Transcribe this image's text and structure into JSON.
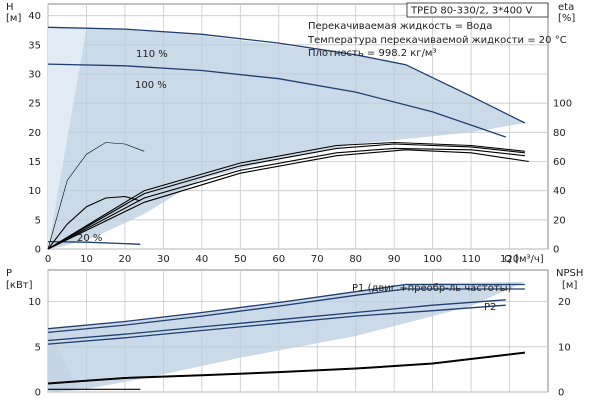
{
  "title": "TPED 80-330/2, 3*400 V",
  "info": [
    "Перекачиваемая жидкость = Вода",
    "Температура перекачиваемой жидкости = 20 °C",
    "Плотность = 998.2 кг/м³"
  ],
  "colors": {
    "band": "#b9cde0",
    "band_light": "#e1ebf5",
    "curve": "#1f3f6e",
    "efficiency": "#000000",
    "grid": "#c8c8c8"
  },
  "chart_data": [
    {
      "type": "line",
      "name": "head",
      "xlabel": "Q [м³/ч]",
      "ylabel": "H",
      "ylabel_unit": "[м]",
      "y2label": "eta",
      "y2label_unit": "[%]",
      "xlim": [
        0,
        130
      ],
      "ylim": [
        0,
        42
      ],
      "y2lim": [
        0,
        168
      ],
      "xticks": [
        0,
        10,
        20,
        30,
        40,
        50,
        60,
        70,
        80,
        90,
        100,
        110,
        120
      ],
      "yticks": [
        0,
        5,
        10,
        15,
        20,
        25,
        30,
        35,
        40
      ],
      "y2ticks": [
        0,
        20,
        40,
        60,
        80,
        100
      ],
      "grid": true,
      "curve_labels": [
        "110 %",
        "100 %",
        "20 %"
      ],
      "series": [
        {
          "name": "110 %",
          "x": [
            0,
            20,
            40,
            60,
            80,
            93,
            110,
            124
          ],
          "y": [
            38,
            37.7,
            36.8,
            35.3,
            33.3,
            31.6,
            26.2,
            21.6
          ]
        },
        {
          "name": "100 %",
          "x": [
            0,
            20,
            40,
            60,
            80,
            100,
            119
          ],
          "y": [
            31.7,
            31.4,
            30.6,
            29.2,
            26.9,
            23.5,
            19.2
          ]
        },
        {
          "name": "20 %",
          "x": [
            0,
            10,
            20,
            24
          ],
          "y": [
            1.27,
            1.17,
            0.93,
            0.8
          ]
        },
        {
          "x": [
            0,
            25,
            50,
            75,
            93,
            110,
            125
          ],
          "y": [
            0,
            32,
            52,
            64,
            68,
            66,
            60
          ],
          "axis": "y2"
        },
        {
          "x": [
            0,
            25,
            50,
            75,
            90,
            110,
            124
          ],
          "y": [
            0,
            35,
            54,
            66,
            69,
            68,
            64
          ],
          "axis": "y2"
        },
        {
          "x": [
            0,
            25,
            50,
            75,
            90,
            110,
            124
          ],
          "y": [
            0,
            38,
            57,
            69,
            72,
            70,
            66
          ],
          "axis": "y2"
        },
        {
          "x": [
            0,
            25,
            50,
            75,
            90,
            110,
            124
          ],
          "y": [
            0,
            40,
            59,
            71,
            73,
            71,
            67
          ],
          "axis": "y2"
        },
        {
          "x": [
            0,
            5,
            10,
            15,
            20,
            24
          ],
          "y": [
            0,
            17,
            29,
            35,
            36,
            33
          ],
          "axis": "y2"
        },
        {
          "x": [
            0,
            5,
            10,
            15,
            20,
            25
          ],
          "y": [
            0,
            47,
            65,
            73,
            72,
            67
          ],
          "axis": "y2",
          "thin": true
        }
      ],
      "operating_area": [
        [
          10,
          38
        ],
        [
          20,
          37.6
        ],
        [
          40,
          36.6
        ],
        [
          60,
          35
        ],
        [
          80,
          33.2
        ],
        [
          93,
          31.6
        ],
        [
          110,
          26.2
        ],
        [
          124,
          21.6
        ],
        [
          110,
          20
        ],
        [
          95,
          19
        ],
        [
          80,
          18
        ],
        [
          60,
          15.5
        ],
        [
          40,
          12
        ],
        [
          25,
          6
        ],
        [
          12,
          2
        ],
        [
          3,
          0.3
        ],
        [
          0,
          0
        ]
      ]
    },
    {
      "type": "line",
      "name": "power",
      "xlabel": "",
      "ylabel": "P",
      "ylabel_unit": "[кВт]",
      "y2label": "NPSH",
      "y2label_unit": "[м]",
      "xlim": [
        0,
        130
      ],
      "ylim": [
        0,
        13.5
      ],
      "y2lim": [
        0,
        27
      ],
      "yticks": [
        0,
        5,
        10
      ],
      "y2ticks": [
        0,
        10,
        20
      ],
      "grid": true,
      "curve_labels": [
        "P1 (двиг.+преобр-ль частоты)",
        "P2"
      ],
      "series": [
        {
          "name": "P1 (двиг.+преобр-ль частоты)",
          "x": [
            0,
            20,
            40,
            60,
            80,
            93,
            124
          ],
          "y": [
            7.0,
            7.8,
            8.8,
            9.9,
            11.1,
            11.9,
            11.9
          ]
        },
        {
          "x": [
            0,
            20,
            40,
            60,
            80,
            93,
            124
          ],
          "y": [
            6.6,
            7.4,
            8.4,
            9.5,
            10.7,
            11.4,
            11.4
          ]
        },
        {
          "name": "P2",
          "x": [
            0,
            20,
            40,
            60,
            80,
            100,
            119
          ],
          "y": [
            5.7,
            6.4,
            7.2,
            8.0,
            8.8,
            9.6,
            10.2
          ]
        },
        {
          "x": [
            0,
            20,
            40,
            60,
            80,
            100,
            119
          ],
          "y": [
            5.3,
            6.0,
            6.8,
            7.6,
            8.4,
            9.0,
            9.6
          ]
        },
        {
          "x": [
            0,
            20,
            40,
            60,
            80,
            100,
            124
          ],
          "y": [
            2.0,
            3.2,
            3.8,
            4.5,
            5.3,
            6.4,
            8.8
          ],
          "axis": "y2"
        },
        {
          "x": [
            0,
            20,
            40,
            60,
            80,
            100,
            124
          ],
          "y": [
            1.8,
            3.0,
            3.6,
            4.3,
            5.1,
            6.2,
            8.6
          ],
          "axis": "y2"
        },
        {
          "x": [
            0,
            24
          ],
          "y": [
            0.3,
            0.3
          ]
        }
      ],
      "operating_area": [
        [
          0,
          7
        ],
        [
          20,
          7.8
        ],
        [
          40,
          8.8
        ],
        [
          60,
          9.9
        ],
        [
          80,
          11.1
        ],
        [
          93,
          12
        ],
        [
          124,
          12.2
        ],
        [
          110,
          9.5
        ],
        [
          80,
          6.2
        ],
        [
          50,
          3.8
        ],
        [
          25,
          1.5
        ],
        [
          8,
          0.2
        ],
        [
          0,
          0
        ]
      ]
    }
  ]
}
